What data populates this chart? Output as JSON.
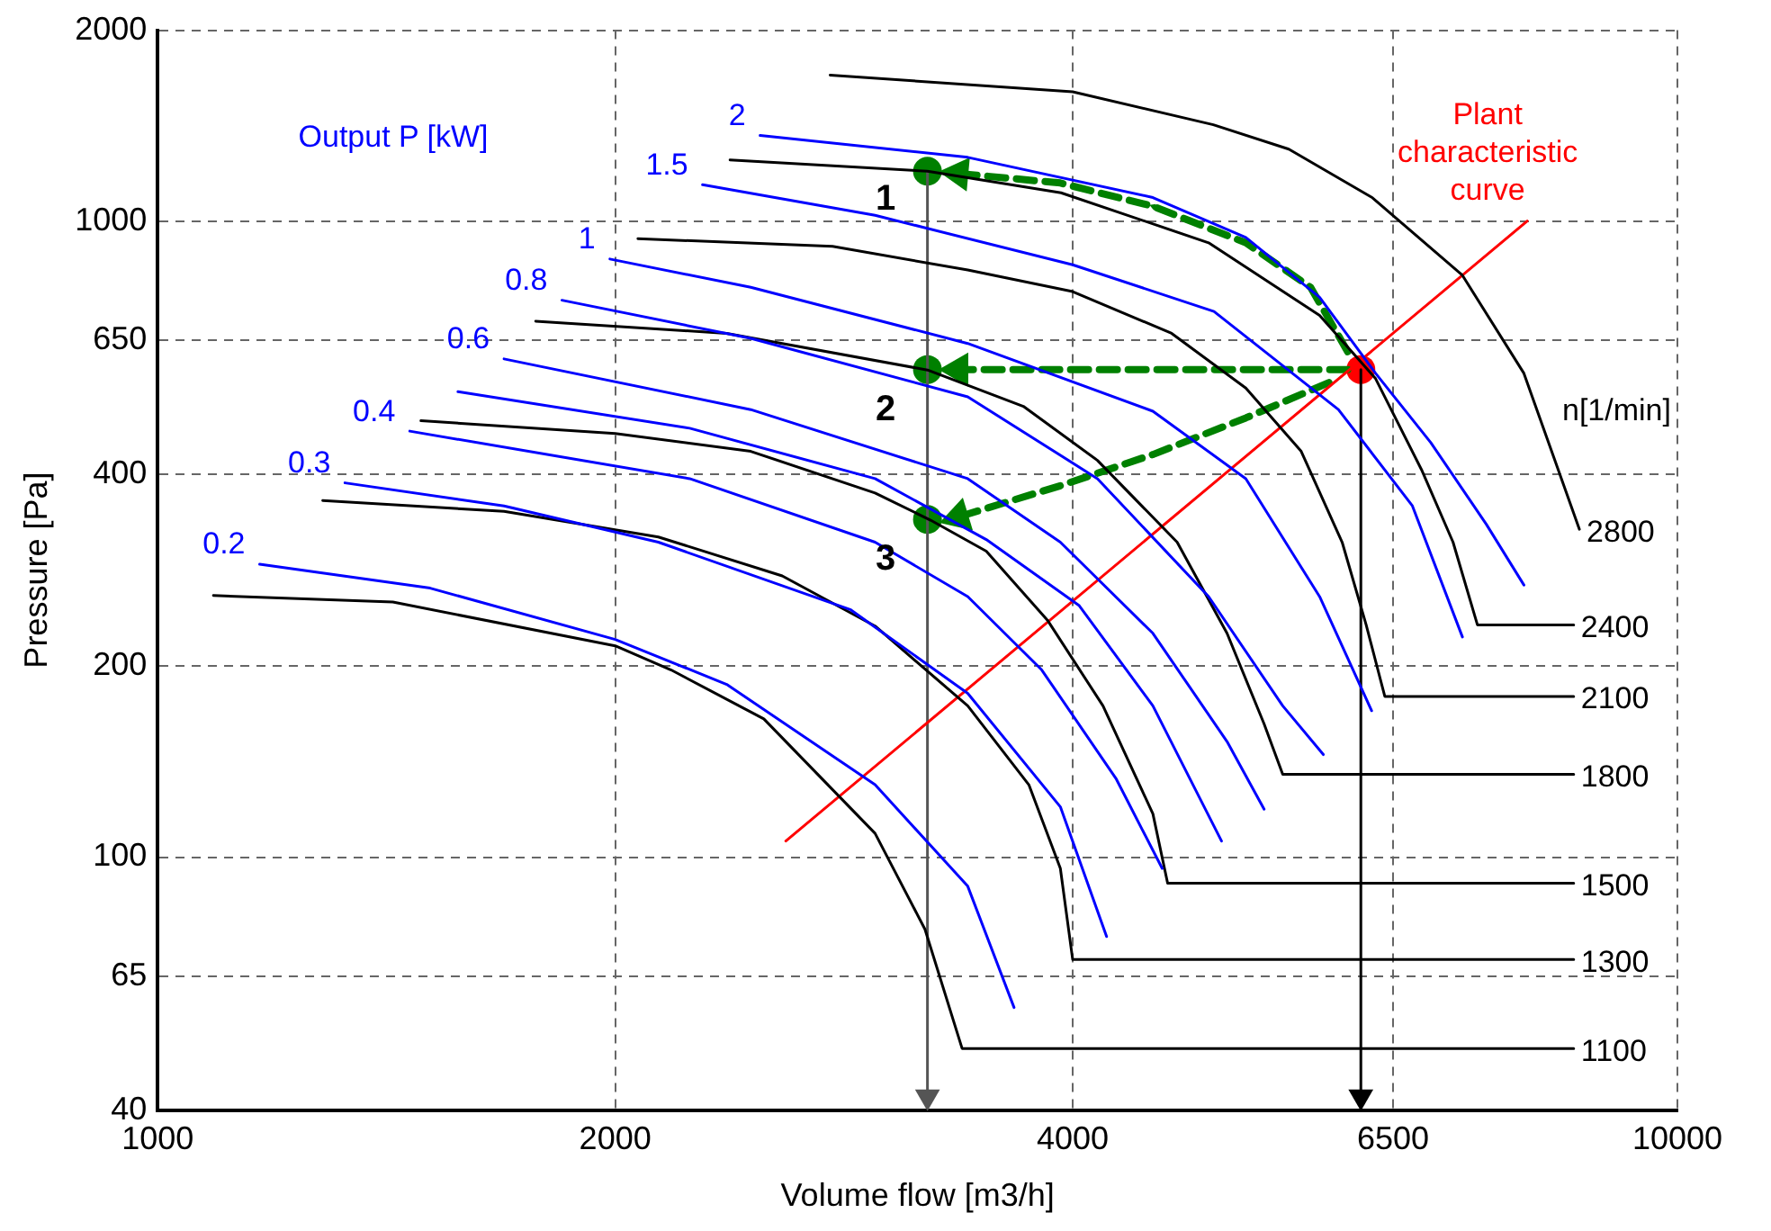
{
  "chart_data": {
    "type": "line",
    "xlabel": "Volume flow [m3/h]",
    "ylabel": "Pressure [Pa]",
    "log": "xy",
    "xlim": [
      1000,
      10000
    ],
    "ylim": [
      40,
      2000
    ],
    "xticks": [
      1000,
      2000,
      4000,
      6500,
      10000
    ],
    "yticks": [
      40,
      65,
      100,
      200,
      400,
      650,
      1000,
      2000
    ],
    "grid": true,
    "marker": "none",
    "line_style": "solid",
    "annotations": [
      "Output P [kW]",
      "n[1/min]",
      "1",
      "2",
      "3"
    ],
    "series": [
      {
        "name": "2",
        "color": "#0000ff",
        "x": [
          2491,
          3412,
          4517,
          5200,
          5815,
          6330,
          6882,
          7486,
          7925
        ],
        "values": [
          1366,
          1262,
          1091,
          944,
          760,
          577,
          449,
          334,
          268
        ]
      },
      {
        "name": "1.5",
        "color": "#0000ff",
        "x": [
          2283,
          2965,
          4000,
          4955,
          5983,
          6693,
          7220
        ],
        "values": [
          1143,
          1023,
          855,
          722,
          506,
          357,
          222
        ]
      },
      {
        "name": "1",
        "color": "#0000ff",
        "x": [
          1984,
          2456,
          3412,
          4517,
          5200,
          5815,
          6292
        ],
        "values": [
          873,
          788,
          643,
          503,
          394,
          257,
          170
        ]
      },
      {
        "name": "0.8",
        "color": "#0000ff",
        "x": [
          1845,
          2456,
          3412,
          4153,
          4915,
          5499,
          5848
        ],
        "values": [
          752,
          655,
          530,
          394,
          257,
          173,
          145
        ]
      },
      {
        "name": "0.6",
        "color": "#0000ff",
        "x": [
          1690,
          2456,
          3412,
          3926,
          4517,
          5054,
          5346
        ],
        "values": [
          608,
          506,
          394,
          313,
          225,
          152,
          119
        ]
      },
      {
        "color": "#0000ff",
        "x": [
          1576,
          2239,
          2965,
          3509,
          4038,
          4517,
          5012
        ],
        "values": [
          540,
          473,
          394,
          316,
          249,
          173,
          106
        ]
      },
      {
        "name": "0.4",
        "color": "#0000ff",
        "x": [
          1465,
          2239,
          2965,
          3412,
          3817,
          4271,
          4581
        ],
        "values": [
          468,
          394,
          313,
          257,
          197,
          133,
          96
        ]
      },
      {
        "name": "0.3",
        "color": "#0000ff",
        "x": [
          1328,
          1690,
          2135,
          2858,
          3412,
          3926,
          4211
        ],
        "values": [
          388,
          357,
          313,
          245,
          181,
          120,
          75
        ]
      },
      {
        "name": "0.2",
        "color": "#0000ff",
        "x": [
          1167,
          1511,
          2000,
          2368,
          2965,
          3412,
          3660
        ],
        "values": [
          289,
          265,
          220,
          187,
          130,
          90,
          58
        ]
      },
      {
        "name": "2800",
        "color": "#000000",
        "x": [
          2770,
          4000,
          4950,
          5550,
          6300,
          7220,
          7925,
          8620
        ],
        "values": [
          1700,
          1600,
          1420,
          1300,
          1090,
          823,
          577,
          328
        ]
      },
      {
        "name": "2400",
        "color": "#000000",
        "x": [
          2380,
          3210,
          3930,
          4915,
          5815,
          6330,
          6786,
          7118,
          7386,
          8546
        ],
        "values": [
          1250,
          1200,
          1110,
          926,
          712,
          566,
          407,
          313,
          232,
          232
        ]
      },
      {
        "name": "2100",
        "color": "#000000",
        "x": [
          2070,
          2780,
          3412,
          4000,
          4647,
          5200,
          5655,
          6017,
          6240,
          6419,
          8546
        ],
        "values": [
          940,
          914,
          839,
          776,
          667,
          547,
          435,
          313,
          232,
          179,
          179
        ]
      },
      {
        "name": "1800",
        "color": "#000000",
        "x": [
          1773,
          2368,
          3210,
          3712,
          4153,
          4686,
          5054,
          5346,
          5499,
          8546
        ],
        "values": [
          697,
          667,
          584,
          512,
          421,
          313,
          225,
          162,
          135,
          135
        ]
      },
      {
        "name": "1500",
        "color": "#000000",
        "x": [
          1490,
          2000,
          2456,
          2965,
          3225,
          3509,
          3850,
          4188,
          4517,
          4619,
          8546
        ],
        "values": [
          486,
          464,
          435,
          374,
          339,
          303,
          236,
          173,
          117,
          91,
          91
        ]
      },
      {
        "name": "1300",
        "color": "#000000",
        "x": [
          1284,
          1690,
          2135,
          2576,
          2965,
          3412,
          3743,
          3926,
          4000,
          8546
        ],
        "values": [
          364,
          350,
          319,
          277,
          231,
          173,
          130,
          96,
          69,
          69
        ]
      },
      {
        "name": "1100",
        "color": "#000000",
        "x": [
          1088,
          1428,
          2000,
          2177,
          2505,
          2965,
          3198,
          3383,
          8546
        ],
        "values": [
          258,
          252,
          215,
          197,
          165,
          109,
          77,
          50,
          50
        ]
      },
      {
        "name": "Plant characteristic curve",
        "color": "#ff0000",
        "x": [
          2590,
          7965
        ],
        "values": [
          106,
          1002
        ]
      },
      {
        "color": "#555555",
        "marker": "triangle",
        "x": [
          3210,
          3210
        ],
        "values": [
          1200,
          42
        ]
      },
      {
        "color": "#000000",
        "marker": "triangle",
        "x": [
          6190,
          6190
        ],
        "values": [
          585,
          42
        ]
      },
      {
        "color": "#008000",
        "marker": "triangle",
        "line_style": "dashed",
        "x": [
          6068,
          5736,
          5200,
          4517,
          3926,
          3364
        ],
        "values": [
          624,
          788,
          926,
          1057,
          1150,
          1190
        ]
      },
      {
        "color": "#008000",
        "marker": "triangle",
        "line_style": "dashed",
        "x": [
          6068,
          3364
        ],
        "values": [
          585,
          585
        ]
      },
      {
        "color": "#008000",
        "marker": "triangle",
        "line_style": "dashed",
        "x": [
          5898,
          5200,
          4517,
          3926,
          3364
        ],
        "values": [
          558,
          491,
          430,
          384,
          343
        ]
      },
      {
        "type": "scatter",
        "color": "#008000",
        "marker": "circle",
        "x": [
          3210,
          3210,
          3210
        ],
        "values": [
          1200,
          585,
          340
        ]
      },
      {
        "type": "scatter",
        "color": "#ff0000",
        "marker": "circle",
        "x": [
          6190
        ],
        "values": [
          585
        ]
      }
    ]
  }
}
